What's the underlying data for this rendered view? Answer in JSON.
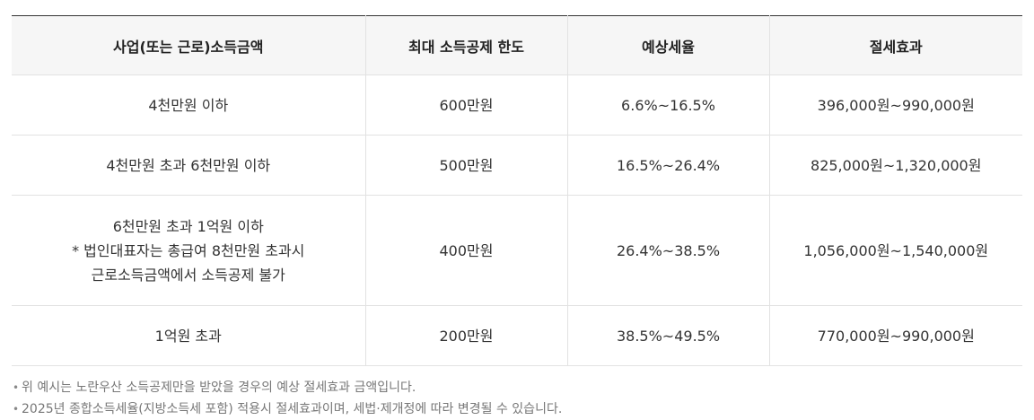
{
  "table": {
    "headers": [
      "사업(또는 근로)소득금액",
      "최대 소득공제 한도",
      "예상세율",
      "절세효과"
    ],
    "rows": [
      {
        "income": [
          "4천만원 이하"
        ],
        "limit": "600만원",
        "rate": "6.6%~16.5%",
        "effect": "396,000원~990,000원"
      },
      {
        "income": [
          "4천만원 초과 6천만원 이하"
        ],
        "limit": "500만원",
        "rate": "16.5%~26.4%",
        "effect": "825,000원~1,320,000원"
      },
      {
        "income": [
          "6천만원 초과 1억원 이하",
          "* 법인대표자는 총급여 8천만원 초과시",
          "근로소득금액에서 소득공제 불가"
        ],
        "limit": "400만원",
        "rate": "26.4%~38.5%",
        "effect": "1,056,000원~1,540,000원"
      },
      {
        "income": [
          "1억원 초과"
        ],
        "limit": "200만원",
        "rate": "38.5%~49.5%",
        "effect": "770,000원~990,000원"
      }
    ]
  },
  "notes": {
    "bullet": "•",
    "items": [
      "위 예시는 노란우산 소득공제만을 받았을 경우의 예상 절세효과 금액입니다.",
      "2025년 종합소득세율(지방소득세 포함) 적용시 절세효과이며, 세법·제개정에 따라 변경될 수 있습니다."
    ]
  }
}
